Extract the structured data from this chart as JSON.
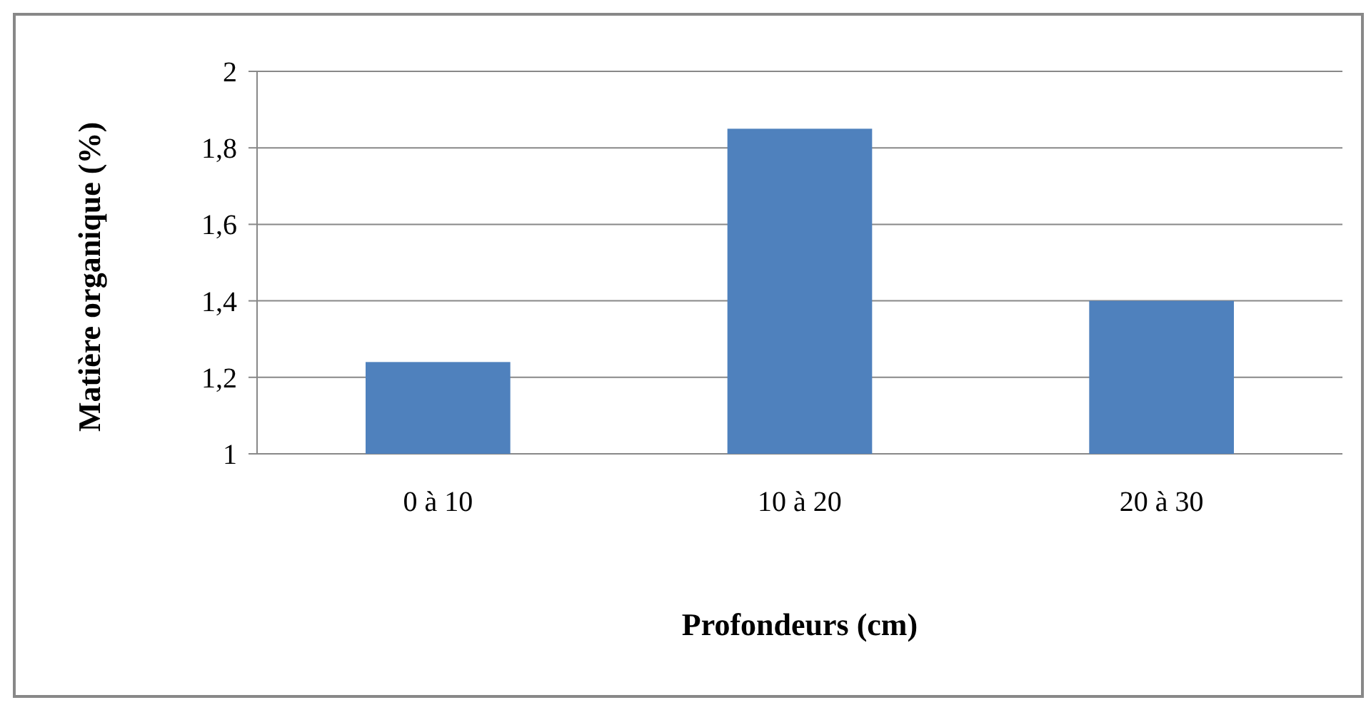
{
  "chart_data": {
    "type": "bar",
    "xlabel": "Profondeurs (cm)",
    "ylabel": "Matière organique (%)",
    "categories": [
      "0 à 10",
      "10 à 20",
      "20 à 30"
    ],
    "values": [
      1.24,
      1.85,
      1.4
    ],
    "color": "#4f81bd",
    "ylim": [
      1,
      2
    ],
    "yticks": [
      1,
      {
        "value": 1.2,
        "label": "1,2"
      },
      {
        "value": 1.4,
        "label": "1,4"
      },
      {
        "value": 1.6,
        "label": "1,6"
      },
      {
        "value": 1.8,
        "label": "1,8"
      },
      2
    ],
    "grid": "y"
  }
}
